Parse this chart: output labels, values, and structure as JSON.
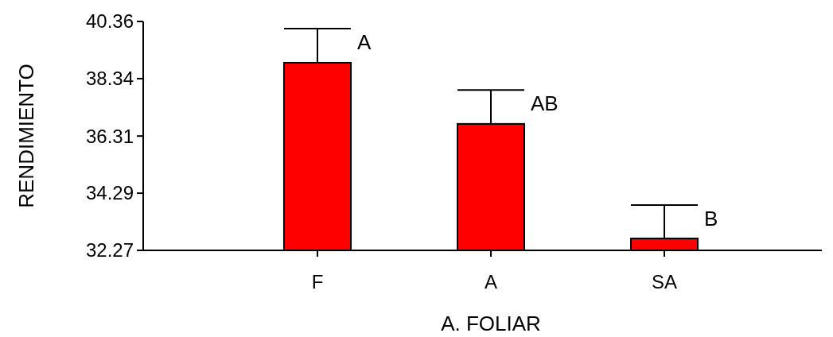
{
  "chart_data": {
    "type": "bar",
    "xlabel": "A. FOLIAR",
    "ylabel": "RENDIMIENTO",
    "categories": [
      "F",
      "A",
      "SA"
    ],
    "values": [
      38.9,
      36.74,
      32.69
    ],
    "errors": [
      [
        38.9,
        40.11
      ],
      [
        36.74,
        37.94
      ],
      [
        32.69,
        33.87
      ]
    ],
    "color": "#ff0000",
    "ylim": [
      32.27,
      40.36
    ],
    "yticks": [
      32.27,
      34.29,
      36.31,
      38.34,
      40.36
    ],
    "annotations": [
      {
        "text": "A",
        "x": "F",
        "y": 40.11
      },
      {
        "text": "AB",
        "x": "A",
        "y": 37.94
      },
      {
        "text": "B",
        "x": "SA",
        "y": 33.87
      }
    ]
  }
}
